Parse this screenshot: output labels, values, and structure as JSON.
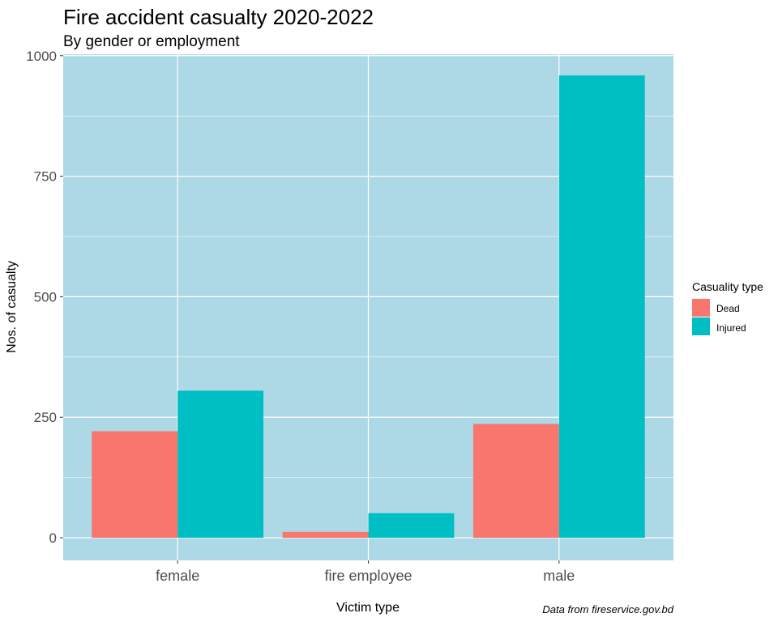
{
  "chart_data": {
    "type": "bar",
    "title": "Fire accident casualty 2020-2022",
    "subtitle": "By gender or employment",
    "xlabel": "Victim type",
    "ylabel": "Nos. of casualty",
    "caption": "Data from fireservice.gov.bd",
    "categories": [
      "female",
      "fire employee",
      "male"
    ],
    "series": [
      {
        "name": "Dead",
        "color": "#F8766D",
        "values": [
          221,
          12,
          236
        ]
      },
      {
        "name": "Injured",
        "color": "#00BFC4",
        "values": [
          305,
          51,
          959
        ]
      }
    ],
    "ylim": [
      -47,
      1003
    ],
    "yticks": [
      0,
      250,
      500,
      750,
      1000
    ],
    "ytick_labels": [
      "0",
      "250",
      "500",
      "750",
      "1000"
    ],
    "legend": {
      "title": "Casuality type",
      "position": "right"
    },
    "grid": true,
    "panel_background": "#ADD8E6",
    "grid_color": "#ffffff"
  }
}
